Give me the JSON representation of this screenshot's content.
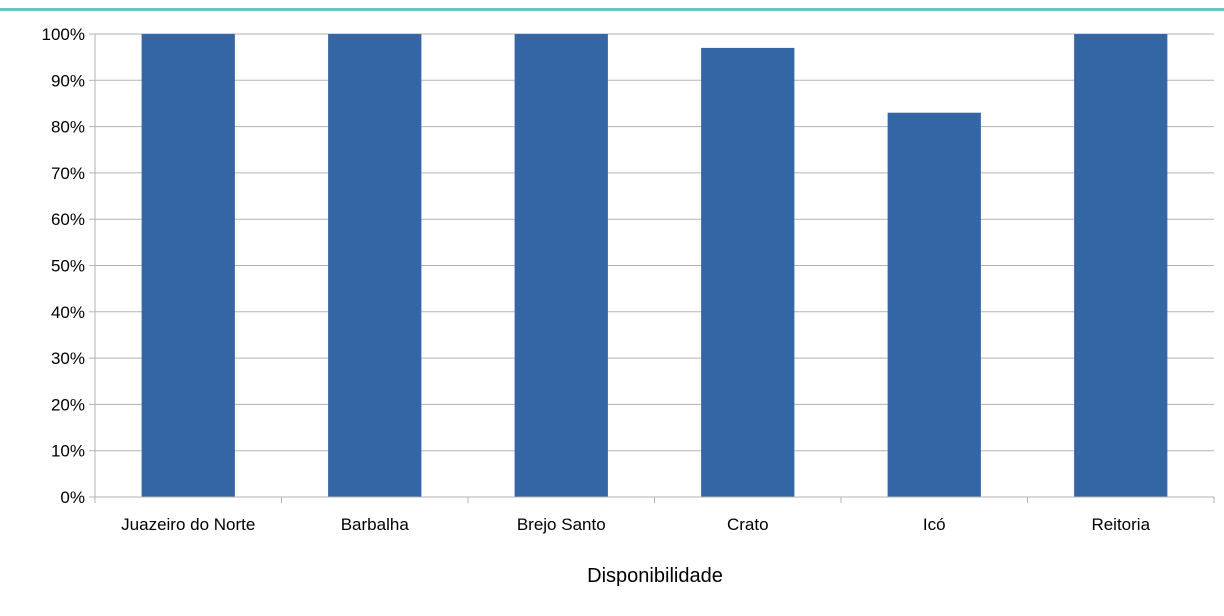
{
  "colors": {
    "top_rule": "#6ec4c2",
    "bar": "#3465a4",
    "grid": "#b3b3b3",
    "axis": "#b3b3b3"
  },
  "chart_data": {
    "type": "bar",
    "categories": [
      "Juazeiro do Norte",
      "Barbalha",
      "Brejo Santo",
      "Crato",
      "Icó",
      "Reitoria"
    ],
    "values": [
      100,
      100,
      100,
      97,
      83,
      100
    ],
    "xlabel": "Disponibilidade",
    "ylabel": "",
    "ylim": [
      0,
      100
    ],
    "yticks": [
      0,
      10,
      20,
      30,
      40,
      50,
      60,
      70,
      80,
      90,
      100
    ],
    "ytick_labels": [
      "0%",
      "10%",
      "20%",
      "30%",
      "40%",
      "50%",
      "60%",
      "70%",
      "80%",
      "90%",
      "100%"
    ],
    "grid": true,
    "legend": "none"
  }
}
